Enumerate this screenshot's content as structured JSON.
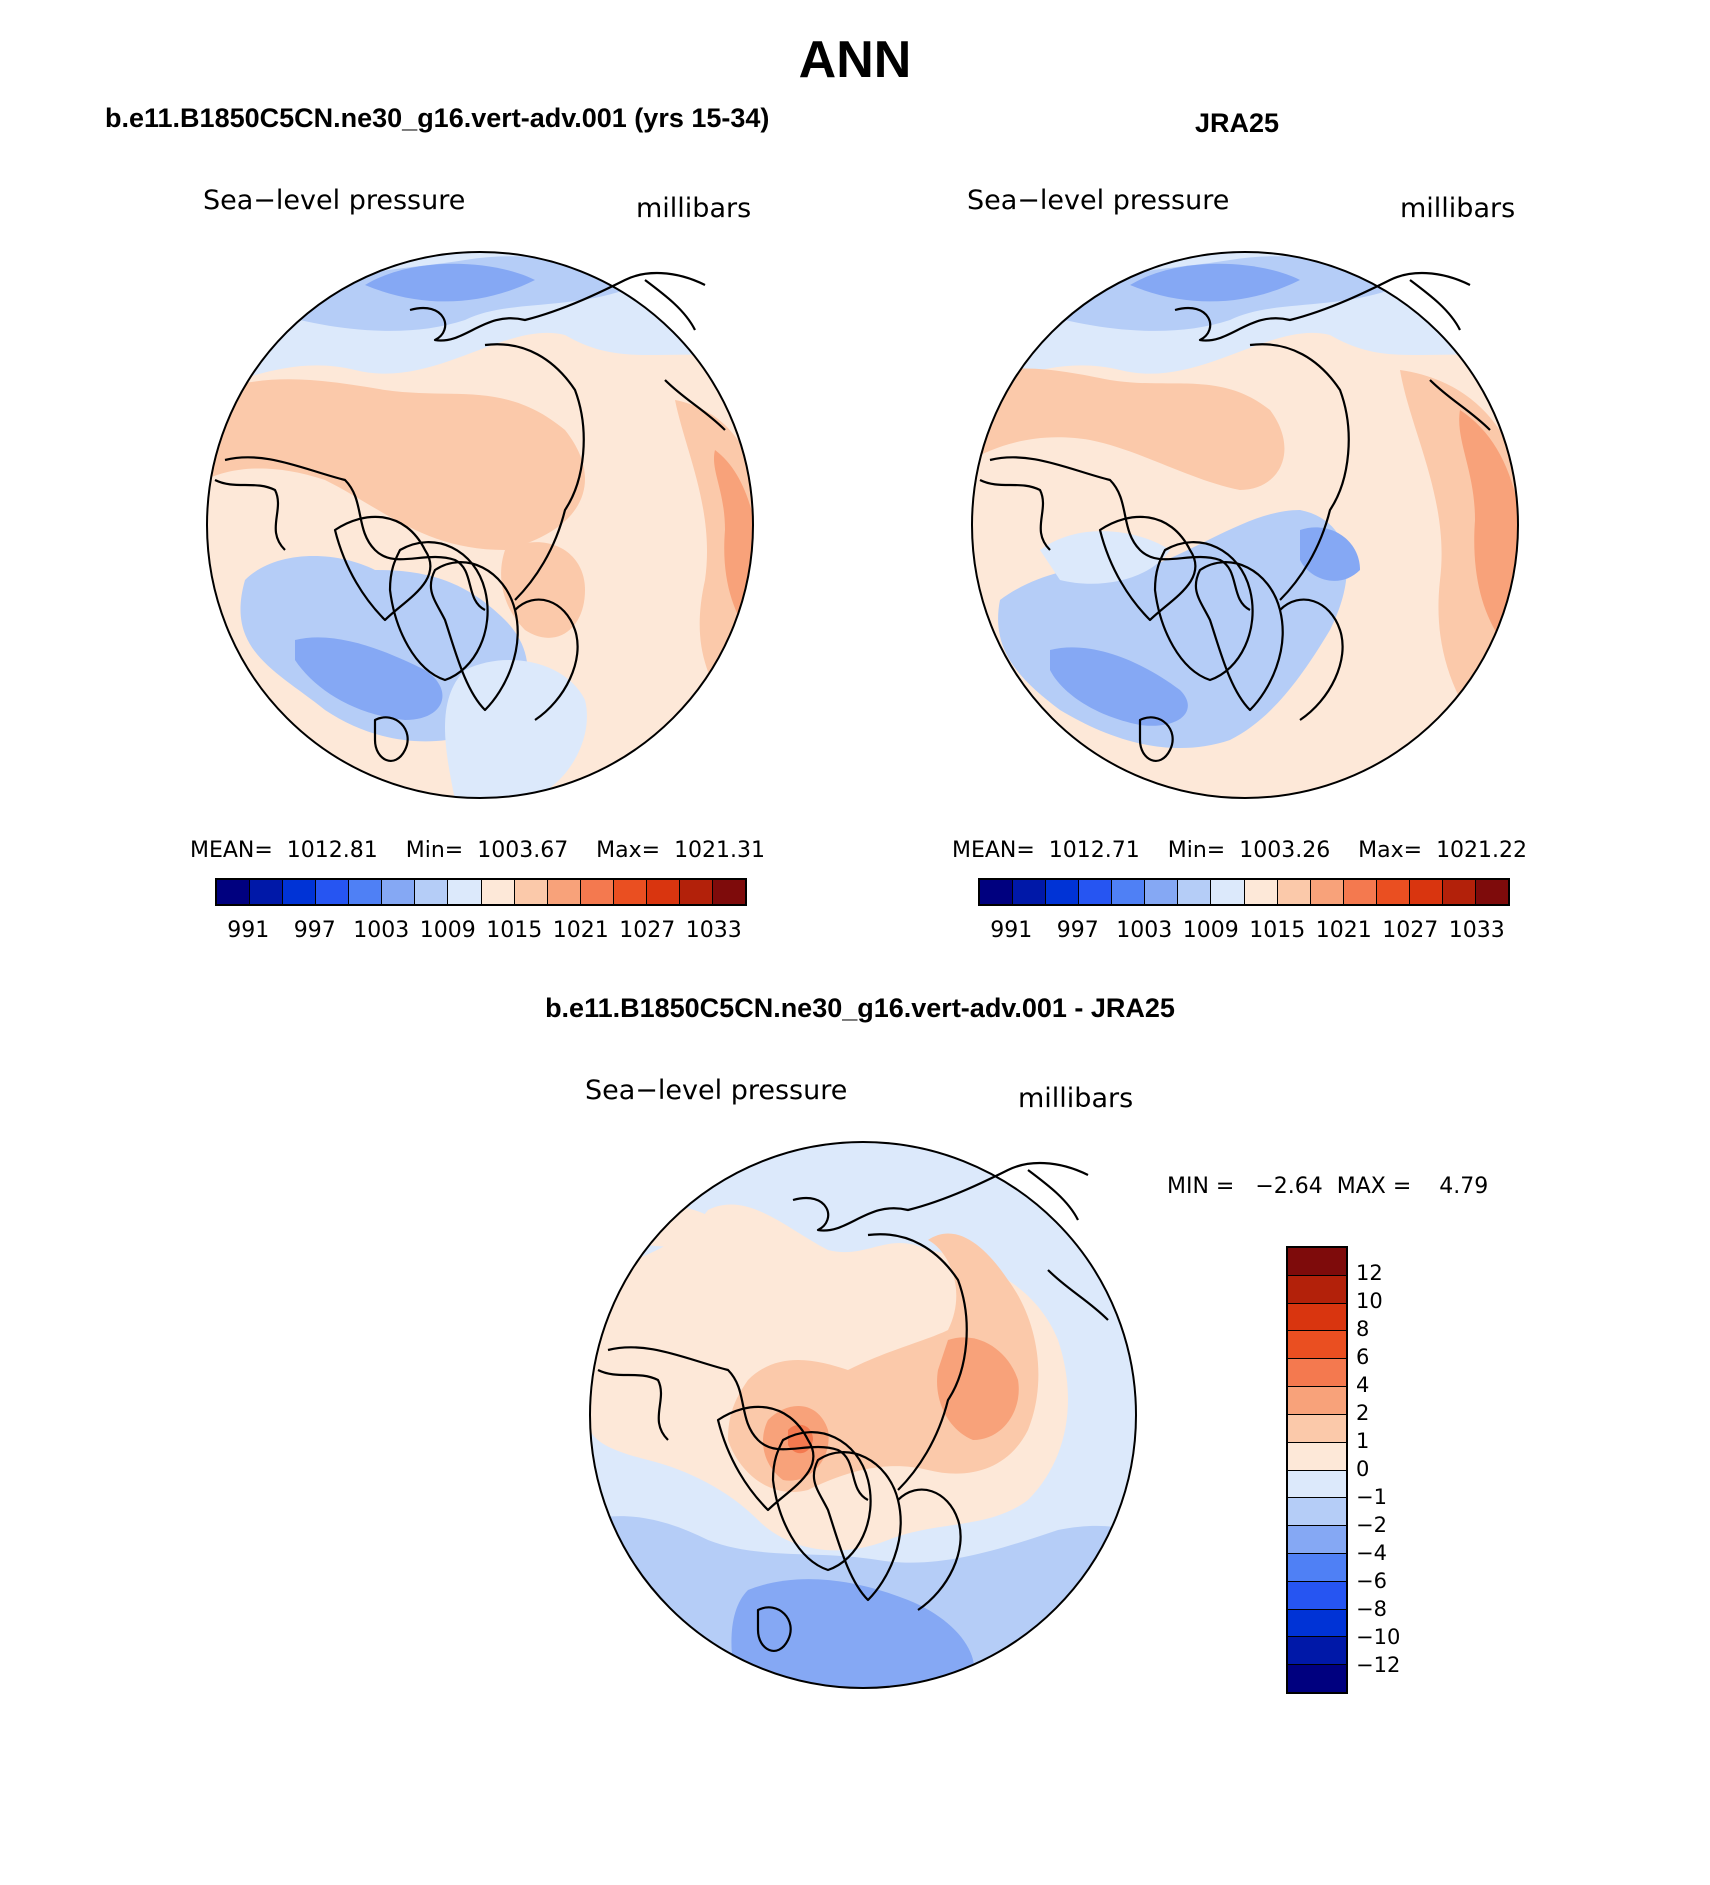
{
  "figure": {
    "title": "ANN",
    "panel_left": {
      "title": "b.e11.B1850C5CN.ne30_g16.vert-adv.001 (yrs 15-34)",
      "variable": "Sea−level pressure",
      "units": "millibars",
      "stats": "MEAN=  1012.81    Min=  1003.67    Max=  1021.31"
    },
    "panel_right": {
      "title": "JRA25",
      "variable": "Sea−level pressure",
      "units": "millibars",
      "stats": "MEAN=  1012.71    Min=  1003.26    Max=  1021.22"
    },
    "panel_diff": {
      "title": "b.e11.B1850C5CN.ne30_g16.vert-adv.001 - JRA25",
      "variable": "Sea−level pressure",
      "units": "millibars",
      "stats": "MIN =   −2.64  MAX =    4.79"
    }
  },
  "colorbar_abs": {
    "colors": [
      "#00007f",
      "#0018a8",
      "#0033d6",
      "#2655f2",
      "#4f80f5",
      "#85a8f4",
      "#b5cdf7",
      "#dce9fb",
      "#fde8d8",
      "#fbc9aa",
      "#f8a27a",
      "#f4794f",
      "#ea4f21",
      "#d9350f",
      "#b3210a",
      "#7e0b0b"
    ],
    "labels": [
      "991",
      "997",
      "1003",
      "1009",
      "1015",
      "1021",
      "1027",
      "1033"
    ]
  },
  "colorbar_diff": {
    "colors": [
      "#7e0b0b",
      "#b3210a",
      "#d9350f",
      "#ea4f21",
      "#f4794f",
      "#f8a27a",
      "#fbc9aa",
      "#fde8d8",
      "#dce9fb",
      "#b5cdf7",
      "#85a8f4",
      "#4f80f5",
      "#2655f2",
      "#0033d6",
      "#0018a8",
      "#00007f"
    ],
    "labels": [
      "12",
      "10",
      "8",
      "6",
      "4",
      "2",
      "1",
      "0",
      "−1",
      "−2",
      "−4",
      "−6",
      "−8",
      "−10",
      "−12"
    ]
  },
  "map_colors": {
    "very_light_blue": "#dce9fb",
    "light_blue": "#b5cdf7",
    "mid_blue": "#85a8f4",
    "blue": "#6f95f0",
    "light_orange": "#fde8d8",
    "peach": "#fbc9aa",
    "orange": "#f8a27a",
    "dark_orange": "#f4794f"
  }
}
